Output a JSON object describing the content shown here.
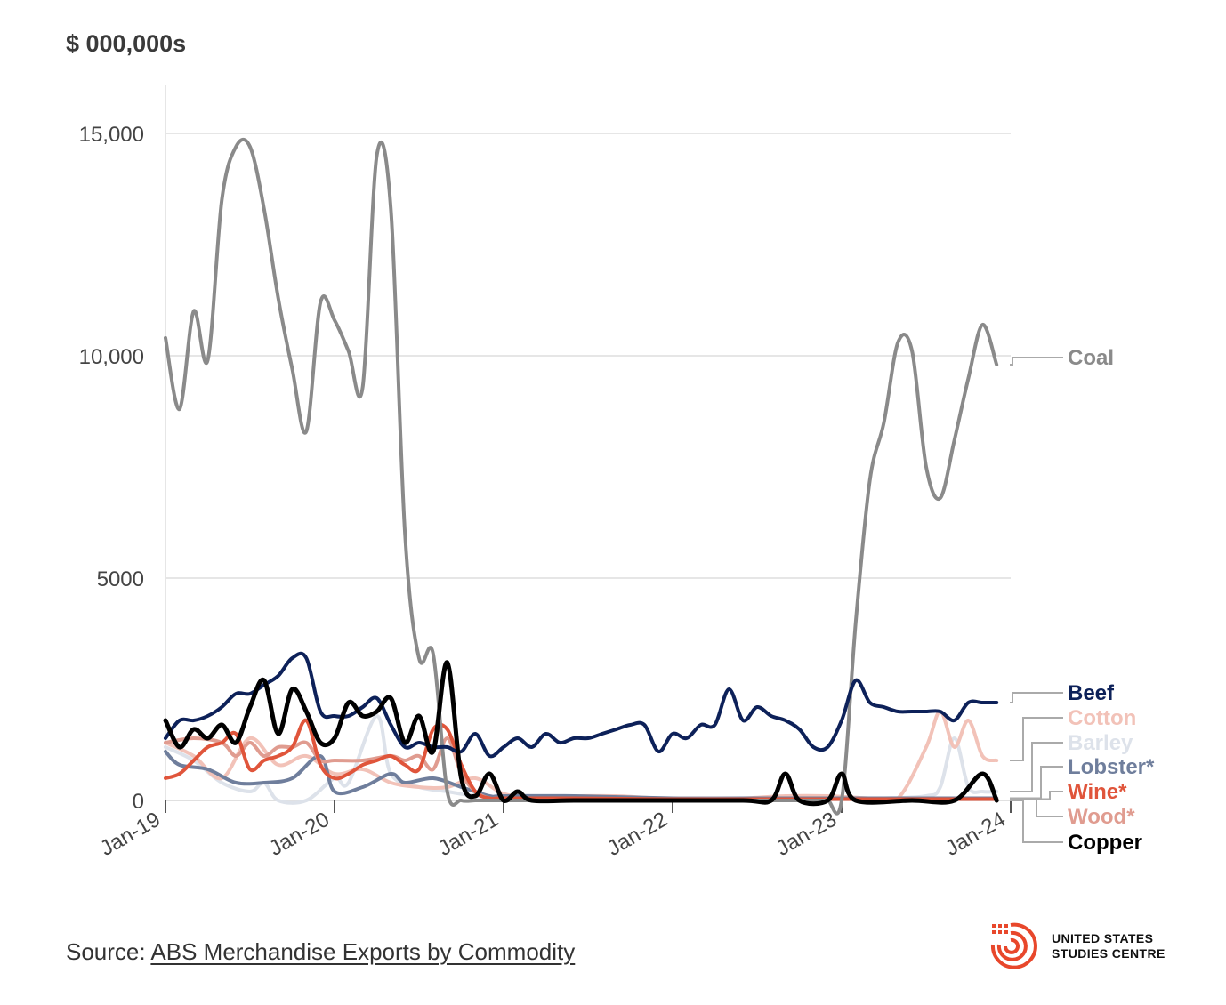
{
  "unit_label": "$ 000,000s",
  "source": {
    "prefix": "Source: ",
    "link_text": "ABS Merchandise Exports by Commodity"
  },
  "logo": {
    "line1": "UNITED STATES",
    "line2": "STUDIES CENTRE",
    "color": "#e8472b"
  },
  "chart_data": {
    "type": "line",
    "title": "",
    "xlabel": "",
    "ylabel": "$ 000,000s",
    "ylim": [
      0,
      16000
    ],
    "xlim": [
      "2019-01",
      "2024-01"
    ],
    "yticks": [
      0,
      5000,
      10000,
      15000
    ],
    "ytick_labels": [
      "0",
      "5000",
      "10,000",
      "15,000"
    ],
    "xticks": [
      "2019-01",
      "2020-01",
      "2021-01",
      "2022-01",
      "2023-01",
      "2024-01"
    ],
    "xtick_labels": [
      "Jan-19",
      "Jan-20",
      "Jan-21",
      "Jan-22",
      "Jan-23",
      "Jan-24"
    ],
    "grid": true,
    "legend": "right, direct labels",
    "series": [
      {
        "name": "Coal",
        "label": "Coal",
        "color": "#8a8a8a",
        "width": 4,
        "x": [
          "2019-01",
          "2019-02",
          "2019-03",
          "2019-04",
          "2019-05",
          "2019-06",
          "2019-07",
          "2019-08",
          "2019-09",
          "2019-10",
          "2019-11",
          "2019-12",
          "2020-01",
          "2020-02",
          "2020-03",
          "2020-04",
          "2020-05",
          "2020-06",
          "2020-07",
          "2020-08",
          "2020-09",
          "2020-10",
          "2020-11",
          "2020-12",
          "2021-01",
          "2021-02",
          "2021-03",
          "2021-04",
          "2021-05",
          "2021-06",
          "2021-07",
          "2021-08",
          "2021-09",
          "2021-10",
          "2021-11",
          "2021-12",
          "2022-01",
          "2022-02",
          "2022-03",
          "2022-04",
          "2022-05",
          "2022-06",
          "2022-07",
          "2022-08",
          "2022-09",
          "2022-10",
          "2022-11",
          "2022-12",
          "2023-01",
          "2023-02",
          "2023-03",
          "2023-04",
          "2023-05",
          "2023-06",
          "2023-07",
          "2023-08",
          "2023-09",
          "2023-10",
          "2023-11",
          "2023-12"
        ],
        "y": [
          10400,
          8800,
          11000,
          9900,
          13500,
          14700,
          14700,
          13300,
          11300,
          9700,
          8300,
          11200,
          10800,
          10100,
          9300,
          14500,
          13300,
          6000,
          3200,
          3300,
          200,
          0,
          0,
          0,
          0,
          0,
          0,
          0,
          0,
          0,
          0,
          0,
          0,
          0,
          0,
          0,
          0,
          0,
          0,
          0,
          0,
          0,
          0,
          0,
          0,
          0,
          0,
          0,
          0,
          4000,
          7200,
          8500,
          10300,
          10100,
          7500,
          6800,
          8100,
          9500,
          10700,
          9800
        ]
      },
      {
        "name": "Beef",
        "label": "Beef",
        "color": "#0d2159",
        "width": 4,
        "x": [
          "2019-01",
          "2019-02",
          "2019-03",
          "2019-04",
          "2019-05",
          "2019-06",
          "2019-07",
          "2019-08",
          "2019-09",
          "2019-10",
          "2019-11",
          "2019-12",
          "2020-01",
          "2020-02",
          "2020-03",
          "2020-04",
          "2020-05",
          "2020-06",
          "2020-07",
          "2020-08",
          "2020-09",
          "2020-10",
          "2020-11",
          "2020-12",
          "2021-01",
          "2021-02",
          "2021-03",
          "2021-04",
          "2021-05",
          "2021-06",
          "2021-07",
          "2021-08",
          "2021-09",
          "2021-10",
          "2021-11",
          "2021-12",
          "2022-01",
          "2022-02",
          "2022-03",
          "2022-04",
          "2022-05",
          "2022-06",
          "2022-07",
          "2022-08",
          "2022-09",
          "2022-10",
          "2022-11",
          "2022-12",
          "2023-01",
          "2023-02",
          "2023-03",
          "2023-04",
          "2023-05",
          "2023-06",
          "2023-07",
          "2023-08",
          "2023-09",
          "2023-10",
          "2023-11",
          "2023-12"
        ],
        "y": [
          1400,
          1800,
          1800,
          1900,
          2100,
          2400,
          2400,
          2600,
          2800,
          3200,
          3200,
          2000,
          1900,
          1900,
          2100,
          2300,
          1700,
          1200,
          1300,
          1200,
          1200,
          1100,
          1500,
          1000,
          1200,
          1400,
          1200,
          1500,
          1300,
          1400,
          1400,
          1500,
          1600,
          1700,
          1700,
          1100,
          1500,
          1400,
          1700,
          1700,
          2500,
          1800,
          2100,
          1900,
          1800,
          1600,
          1200,
          1200,
          1800,
          2700,
          2200,
          2100,
          2000,
          2000,
          2000,
          2000,
          1800,
          2200,
          2200,
          2200
        ]
      },
      {
        "name": "Cotton",
        "label": "Cotton",
        "color": "#f2c2b8",
        "width": 4,
        "x": [
          "2019-01",
          "2019-03",
          "2019-05",
          "2019-07",
          "2019-09",
          "2019-11",
          "2020-01",
          "2020-03",
          "2020-05",
          "2020-07",
          "2020-09",
          "2020-11",
          "2021-01",
          "2021-03",
          "2021-06",
          "2021-09",
          "2021-12",
          "2022-03",
          "2022-06",
          "2022-09",
          "2022-12",
          "2023-03",
          "2023-05",
          "2023-07",
          "2023-08",
          "2023-09",
          "2023-10",
          "2023-11",
          "2023-12"
        ],
        "y": [
          1300,
          1000,
          500,
          1400,
          800,
          1000,
          600,
          700,
          400,
          300,
          300,
          500,
          150,
          100,
          100,
          100,
          50,
          50,
          50,
          100,
          100,
          50,
          50,
          1200,
          2000,
          1200,
          1800,
          1000,
          900
        ]
      },
      {
        "name": "Barley",
        "label": "Barley",
        "color": "#dde2ea",
        "width": 4,
        "x": [
          "2019-01",
          "2019-03",
          "2019-05",
          "2019-07",
          "2019-08",
          "2019-09",
          "2019-11",
          "2020-01",
          "2020-02",
          "2020-04",
          "2020-05",
          "2020-07",
          "2020-09",
          "2020-11",
          "2021-01",
          "2021-06",
          "2022-01",
          "2022-06",
          "2023-01",
          "2023-04",
          "2023-07",
          "2023-08",
          "2023-09",
          "2023-10",
          "2023-11",
          "2023-12"
        ],
        "y": [
          1200,
          900,
          400,
          200,
          400,
          0,
          0,
          500,
          400,
          1900,
          600,
          300,
          200,
          100,
          50,
          50,
          50,
          50,
          50,
          50,
          100,
          300,
          1400,
          300,
          200,
          200
        ]
      },
      {
        "name": "Lobster",
        "label": "Lobster*",
        "color": "#6f7e9c",
        "width": 4,
        "x": [
          "2019-01",
          "2019-02",
          "2019-04",
          "2019-06",
          "2019-08",
          "2019-10",
          "2019-12",
          "2020-01",
          "2020-03",
          "2020-05",
          "2020-06",
          "2020-08",
          "2020-10",
          "2020-12",
          "2021-01",
          "2021-06",
          "2022-01",
          "2022-06",
          "2023-01",
          "2023-06",
          "2023-12"
        ],
        "y": [
          1100,
          800,
          700,
          400,
          400,
          500,
          1000,
          200,
          300,
          600,
          400,
          500,
          300,
          100,
          100,
          100,
          50,
          50,
          50,
          50,
          50
        ]
      },
      {
        "name": "Wine",
        "label": "Wine*",
        "color": "#e0553b",
        "width": 4,
        "x": [
          "2019-01",
          "2019-02",
          "2019-03",
          "2019-04",
          "2019-05",
          "2019-06",
          "2019-07",
          "2019-08",
          "2019-09",
          "2019-10",
          "2019-11",
          "2019-12",
          "2020-01",
          "2020-02",
          "2020-03",
          "2020-04",
          "2020-05",
          "2020-06",
          "2020-07",
          "2020-08",
          "2020-09",
          "2020-10",
          "2020-11",
          "2020-12",
          "2021-01",
          "2021-06",
          "2022-01",
          "2022-06",
          "2023-01",
          "2023-06",
          "2023-12"
        ],
        "y": [
          500,
          600,
          900,
          1200,
          1300,
          1500,
          700,
          900,
          1000,
          1200,
          1800,
          800,
          500,
          600,
          800,
          900,
          1000,
          800,
          700,
          1600,
          1600,
          800,
          200,
          50,
          50,
          50,
          30,
          30,
          30,
          30,
          30
        ]
      },
      {
        "name": "Wood",
        "label": "Wood*",
        "color": "#e09c90",
        "width": 4,
        "x": [
          "2019-01",
          "2019-03",
          "2019-05",
          "2019-06",
          "2019-07",
          "2019-08",
          "2019-09",
          "2019-10",
          "2019-11",
          "2019-12",
          "2020-01",
          "2020-03",
          "2020-05",
          "2020-06",
          "2020-07",
          "2020-08",
          "2020-09",
          "2020-10",
          "2020-11",
          "2020-12",
          "2021-01",
          "2021-06",
          "2022-01",
          "2022-06",
          "2023-01",
          "2023-06",
          "2023-12"
        ],
        "y": [
          1300,
          1400,
          1300,
          1000,
          1300,
          1000,
          1200,
          1200,
          1300,
          900,
          900,
          900,
          1000,
          900,
          1000,
          700,
          1400,
          600,
          200,
          50,
          50,
          30,
          30,
          30,
          30,
          30,
          30
        ]
      },
      {
        "name": "Copper",
        "label": "Copper",
        "color": "#000000",
        "width": 5,
        "x": [
          "2019-01",
          "2019-02",
          "2019-03",
          "2019-04",
          "2019-05",
          "2019-06",
          "2019-07",
          "2019-08",
          "2019-09",
          "2019-10",
          "2019-11",
          "2019-12",
          "2020-01",
          "2020-02",
          "2020-03",
          "2020-04",
          "2020-05",
          "2020-06",
          "2020-07",
          "2020-08",
          "2020-09",
          "2020-10",
          "2020-11",
          "2020-12",
          "2021-01",
          "2021-02",
          "2021-03",
          "2021-06",
          "2021-12",
          "2022-06",
          "2022-08",
          "2022-09",
          "2022-10",
          "2022-12",
          "2023-01",
          "2023-02",
          "2023-06",
          "2023-09",
          "2023-11",
          "2023-12"
        ],
        "y": [
          1800,
          1200,
          1600,
          1400,
          1700,
          1300,
          2100,
          2700,
          1500,
          2500,
          2000,
          1300,
          1400,
          2200,
          1900,
          2000,
          2300,
          1300,
          1900,
          1100,
          3100,
          500,
          100,
          600,
          0,
          200,
          0,
          0,
          0,
          0,
          0,
          600,
          0,
          0,
          600,
          0,
          0,
          0,
          600,
          0
        ]
      }
    ]
  }
}
